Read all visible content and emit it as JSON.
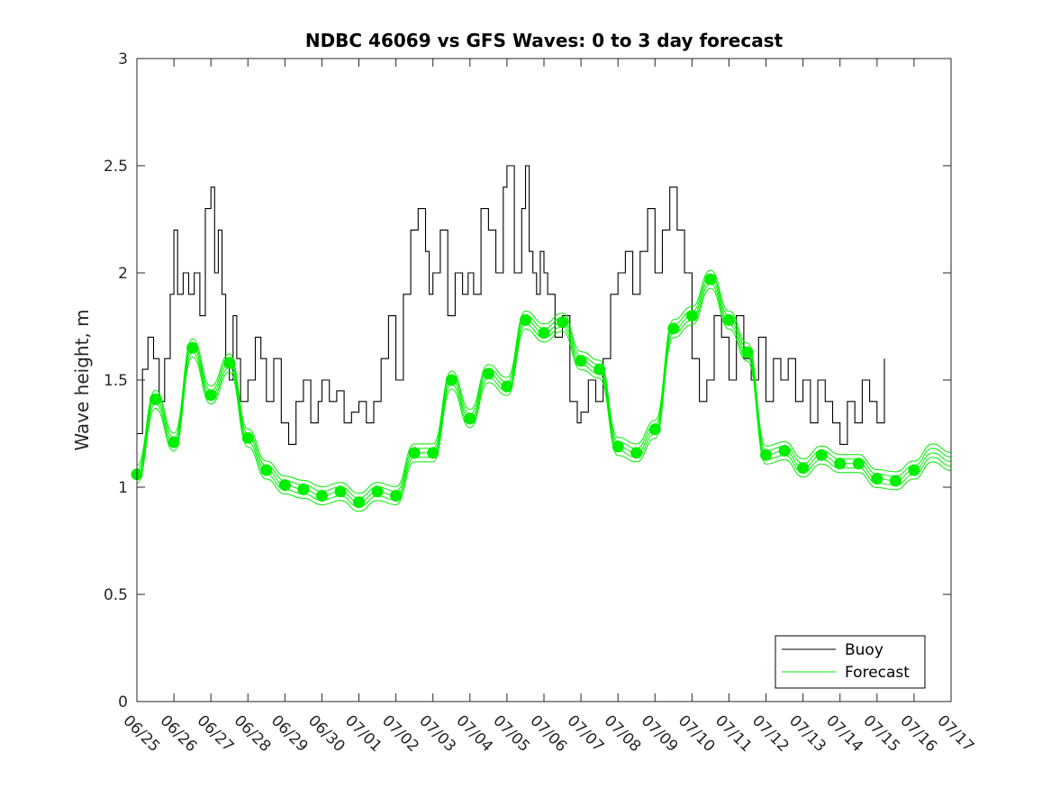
{
  "chart_data": {
    "type": "line",
    "title": "NDBC 46069 vs GFS Waves: 0 to 3 day forecast",
    "xlabel": "",
    "ylabel": "Wave height, m",
    "xlim": [
      "06/25",
      "07/17"
    ],
    "ylim": [
      0,
      3
    ],
    "grid": false,
    "legend_position": "bottom-right",
    "x_ticks": [
      "06/25",
      "06/26",
      "06/27",
      "06/28",
      "06/29",
      "06/30",
      "07/01",
      "07/02",
      "07/03",
      "07/04",
      "07/05",
      "07/06",
      "07/07",
      "07/08",
      "07/09",
      "07/10",
      "07/11",
      "07/12",
      "07/13",
      "07/14",
      "07/15",
      "07/16",
      "07/17"
    ],
    "y_ticks": [
      "0",
      "0.5",
      "1",
      "1.5",
      "2",
      "2.5",
      "3"
    ],
    "colors": {
      "buoy": "#000000",
      "forecast": "#00ee00"
    },
    "series": [
      {
        "name": "Buoy",
        "x_days": [
          0.0,
          0.15,
          0.3,
          0.45,
          0.6,
          0.75,
          0.9,
          1.0,
          1.1,
          1.25,
          1.4,
          1.55,
          1.7,
          1.85,
          2.0,
          2.1,
          2.2,
          2.3,
          2.4,
          2.5,
          2.6,
          2.7,
          2.8,
          3.0,
          3.2,
          3.35,
          3.5,
          3.7,
          3.9,
          4.1,
          4.3,
          4.5,
          4.7,
          4.9,
          5.0,
          5.2,
          5.4,
          5.6,
          5.8,
          6.0,
          6.2,
          6.4,
          6.6,
          6.8,
          7.0,
          7.2,
          7.4,
          7.6,
          7.8,
          7.9,
          8.0,
          8.2,
          8.4,
          8.6,
          8.8,
          8.95,
          9.1,
          9.3,
          9.5,
          9.7,
          9.9,
          10.0,
          10.2,
          10.4,
          10.5,
          10.6,
          10.7,
          10.8,
          10.9,
          11.0,
          11.1,
          11.3,
          11.5,
          11.7,
          11.9,
          12.0,
          12.2,
          12.4,
          12.6,
          12.8,
          13.0,
          13.2,
          13.4,
          13.6,
          13.8,
          14.0,
          14.2,
          14.4,
          14.6,
          14.8,
          15.0,
          15.2,
          15.4,
          15.6,
          15.8,
          16.0,
          16.2,
          16.4,
          16.6,
          16.8,
          17.0,
          17.2,
          17.4,
          17.6,
          17.8,
          18.0,
          18.2,
          18.4,
          18.6,
          18.8,
          19.0,
          19.2,
          19.4,
          19.6,
          19.8,
          20.0,
          20.2
        ],
        "values": [
          1.25,
          1.55,
          1.7,
          1.6,
          1.4,
          1.6,
          1.9,
          2.2,
          1.9,
          2.0,
          1.9,
          2.0,
          1.8,
          2.3,
          2.4,
          2.0,
          2.2,
          1.9,
          1.6,
          1.5,
          1.8,
          1.6,
          1.4,
          1.5,
          1.7,
          1.6,
          1.4,
          1.6,
          1.3,
          1.2,
          1.4,
          1.5,
          1.3,
          1.4,
          1.5,
          1.4,
          1.45,
          1.3,
          1.35,
          1.4,
          1.3,
          1.4,
          1.6,
          1.8,
          1.5,
          1.9,
          2.2,
          2.3,
          2.1,
          1.9,
          2.0,
          2.2,
          1.8,
          2.0,
          1.9,
          2.0,
          1.9,
          2.3,
          2.2,
          2.0,
          2.4,
          2.5,
          2.0,
          2.3,
          2.5,
          2.1,
          2.0,
          1.9,
          2.1,
          2.0,
          1.9,
          1.7,
          1.8,
          1.4,
          1.3,
          1.35,
          1.5,
          1.4,
          1.6,
          1.9,
          2.0,
          2.1,
          1.9,
          2.1,
          2.3,
          2.0,
          2.2,
          2.4,
          2.2,
          2.0,
          1.6,
          1.4,
          1.5,
          1.8,
          1.7,
          1.5,
          1.8,
          1.6,
          1.5,
          1.7,
          1.4,
          1.6,
          1.5,
          1.6,
          1.4,
          1.5,
          1.3,
          1.5,
          1.4,
          1.3,
          1.2,
          1.4,
          1.3,
          1.5,
          1.4,
          1.3,
          1.6
        ]
      },
      {
        "name": "Forecast",
        "x_days": [
          0.0,
          0.5,
          1.0,
          1.5,
          2.0,
          2.5,
          3.0,
          3.5,
          4.0,
          4.5,
          5.0,
          5.5,
          6.0,
          6.5,
          7.0,
          7.5,
          8.0,
          8.5,
          9.0,
          9.5,
          10.0,
          10.5,
          11.0,
          11.5,
          12.0,
          12.5,
          13.0,
          13.5,
          14.0,
          14.5,
          15.0,
          15.5,
          16.0,
          16.5,
          17.0,
          17.5,
          18.0,
          18.5,
          19.0,
          19.5,
          20.0,
          20.5,
          21.0,
          21.5,
          22.0
        ],
        "values": [
          1.06,
          1.41,
          1.21,
          1.65,
          1.43,
          1.58,
          1.23,
          1.08,
          1.01,
          0.99,
          0.96,
          0.98,
          0.93,
          0.98,
          0.96,
          1.16,
          1.16,
          1.5,
          1.32,
          1.53,
          1.47,
          1.78,
          1.72,
          1.77,
          1.59,
          1.55,
          1.19,
          1.16,
          1.27,
          1.74,
          1.8,
          1.97,
          1.78,
          1.63,
          1.15,
          1.17,
          1.09,
          1.15,
          1.11,
          1.11,
          1.04,
          1.03,
          1.08,
          1.16,
          1.12
        ]
      }
    ],
    "forecast_markers": {
      "x_days": [
        0.0,
        0.5,
        1.0,
        1.5,
        2.0,
        2.5,
        3.0,
        3.5,
        4.0,
        4.5,
        5.0,
        5.5,
        6.0,
        6.5,
        7.0,
        7.5,
        8.0,
        8.5,
        9.0,
        9.5,
        10.0,
        10.5,
        11.0,
        11.5,
        12.0,
        12.5,
        13.0,
        13.5,
        14.0,
        14.5,
        15.0,
        15.5,
        16.0,
        16.5,
        17.0,
        17.5,
        18.0,
        18.5,
        19.0,
        19.5,
        20.0,
        20.5,
        21.0
      ],
      "values": [
        1.06,
        1.41,
        1.21,
        1.65,
        1.43,
        1.58,
        1.23,
        1.08,
        1.01,
        0.99,
        0.96,
        0.98,
        0.93,
        0.98,
        0.96,
        1.16,
        1.16,
        1.5,
        1.32,
        1.53,
        1.47,
        1.78,
        1.72,
        1.77,
        1.59,
        1.55,
        1.19,
        1.16,
        1.27,
        1.74,
        1.8,
        1.97,
        1.78,
        1.63,
        1.15,
        1.17,
        1.09,
        1.15,
        1.11,
        1.11,
        1.04,
        1.03,
        1.08
      ]
    }
  }
}
